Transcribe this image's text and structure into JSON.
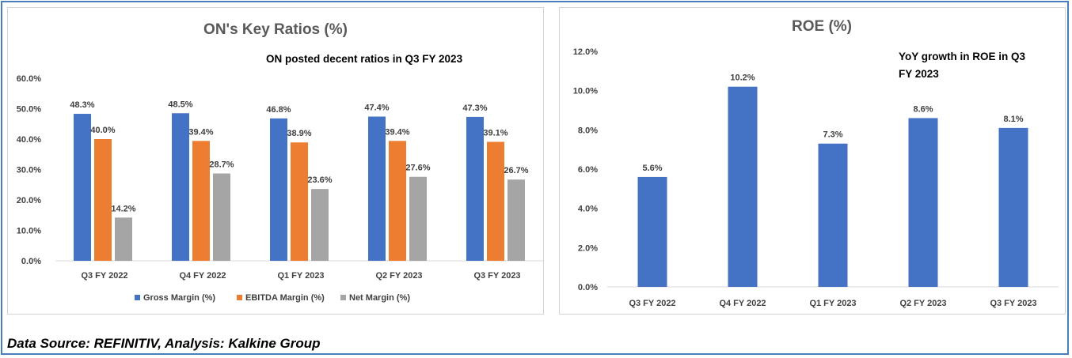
{
  "source_note": "Data Source: REFINITIV, Analysis: Kalkine Group",
  "colors": {
    "gross": "#4472c4",
    "ebitda": "#ed7d31",
    "net": "#a5a5a5",
    "roe": "#4472c4",
    "frame": "#4a7ebb"
  },
  "chart_data": [
    {
      "type": "bar",
      "title": "ON's Key Ratios (%)",
      "annotation": "ON posted decent ratios in Q3 FY 2023",
      "categories": [
        "Q3 FY  2022",
        "Q4 FY 2022",
        "Q1 FY 2023",
        "Q2 FY 2023",
        "Q3 FY 2023"
      ],
      "series": [
        {
          "name": "Gross Margin (%)",
          "values": [
            48.3,
            48.5,
            46.8,
            47.4,
            47.3
          ],
          "labels": [
            "48.3%",
            "48.5%",
            "46.8%",
            "47.4%",
            "47.3%"
          ]
        },
        {
          "name": "EBITDA Margin (%)",
          "values": [
            40.0,
            39.4,
            38.9,
            39.4,
            39.1
          ],
          "labels": [
            "40.0%",
            "39.4%",
            "38.9%",
            "39.4%",
            "39.1%"
          ]
        },
        {
          "name": "Net Margin (%)",
          "values": [
            14.2,
            28.7,
            23.6,
            27.6,
            26.7
          ],
          "labels": [
            "14.2%",
            "28.7%",
            "23.6%",
            "27.6%",
            "26.7%"
          ]
        }
      ],
      "ylim": [
        0,
        60
      ],
      "yticks": [
        0,
        10,
        20,
        30,
        40,
        50,
        60
      ],
      "ytick_labels": [
        "0.0%",
        "10.0%",
        "20.0%",
        "30.0%",
        "40.0%",
        "50.0%",
        "60.0%"
      ],
      "grid": false,
      "legend": "bottom"
    },
    {
      "type": "bar",
      "title": "ROE (%)",
      "annotation_lines": [
        "YoY growth in ROE in Q3",
        "FY 2023"
      ],
      "categories": [
        "Q3 FY  2022",
        "Q4 FY 2022",
        "Q1 FY 2023",
        "Q2 FY 2023",
        "Q3 FY 2023"
      ],
      "series": [
        {
          "name": "ROE (%)",
          "values": [
            5.6,
            10.2,
            7.3,
            8.6,
            8.1
          ],
          "labels": [
            "5.6%",
            "10.2%",
            "7.3%",
            "8.6%",
            "8.1%"
          ]
        }
      ],
      "ylim": [
        0,
        12
      ],
      "yticks": [
        0,
        2,
        4,
        6,
        8,
        10,
        12
      ],
      "ytick_labels": [
        "0.0%",
        "2.0%",
        "4.0%",
        "6.0%",
        "8.0%",
        "10.0%",
        "12.0%"
      ],
      "grid": false,
      "legend": "none"
    }
  ]
}
